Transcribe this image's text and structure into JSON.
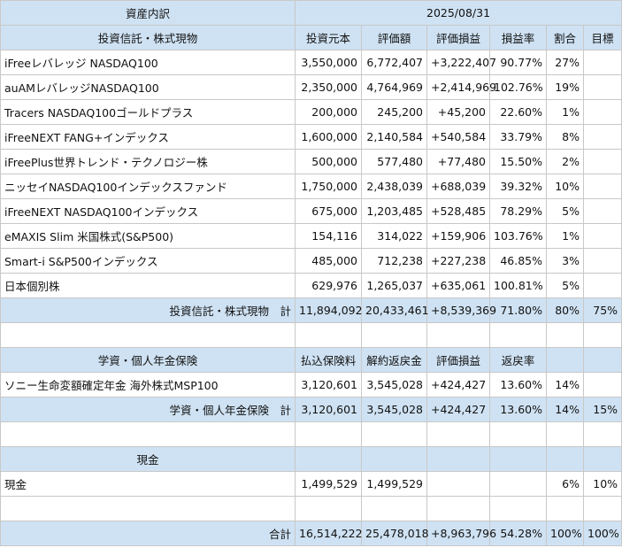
{
  "header": {
    "title": "資産内訳",
    "date": "2025/08/31"
  },
  "invest": {
    "section_label": "投資信託・株式現物",
    "columns": [
      "投資元本",
      "評価額",
      "評価損益",
      "損益率",
      "割合",
      "目標"
    ],
    "rows": [
      {
        "name": "iFreeレバレッジ NASDAQ100",
        "principal": "3,550,000",
        "value": "6,772,407",
        "gain": "+3,222,407",
        "rate": "90.77%",
        "share": "27%",
        "target": ""
      },
      {
        "name": "auAMレバレッジNASDAQ100",
        "principal": "2,350,000",
        "value": "4,764,969",
        "gain": "+2,414,969",
        "rate": "102.76%",
        "share": "19%",
        "target": ""
      },
      {
        "name": "Tracers NASDAQ100ゴールドプラス",
        "principal": "200,000",
        "value": "245,200",
        "gain": "+45,200",
        "rate": "22.60%",
        "share": "1%",
        "target": ""
      },
      {
        "name": "iFreeNEXT FANG+インデックス",
        "principal": "1,600,000",
        "value": "2,140,584",
        "gain": "+540,584",
        "rate": "33.79%",
        "share": "8%",
        "target": ""
      },
      {
        "name": "iFreePlus世界トレンド・テクノロジー株",
        "principal": "500,000",
        "value": "577,480",
        "gain": "+77,480",
        "rate": "15.50%",
        "share": "2%",
        "target": ""
      },
      {
        "name": "ニッセイNASDAQ100インデックスファンド",
        "principal": "1,750,000",
        "value": "2,438,039",
        "gain": "+688,039",
        "rate": "39.32%",
        "share": "10%",
        "target": ""
      },
      {
        "name": "iFreeNEXT NASDAQ100インデックス",
        "principal": "675,000",
        "value": "1,203,485",
        "gain": "+528,485",
        "rate": "78.29%",
        "share": "5%",
        "target": ""
      },
      {
        "name": "eMAXIS Slim 米国株式(S&P500)",
        "principal": "154,116",
        "value": "314,022",
        "gain": "+159,906",
        "rate": "103.76%",
        "share": "1%",
        "target": ""
      },
      {
        "name": "Smart-i S&P500インデックス",
        "principal": "485,000",
        "value": "712,238",
        "gain": "+227,238",
        "rate": "46.85%",
        "share": "3%",
        "target": ""
      },
      {
        "name": "日本個別株",
        "principal": "629,976",
        "value": "1,265,037",
        "gain": "+635,061",
        "rate": "100.81%",
        "share": "5%",
        "target": ""
      }
    ],
    "total": {
      "label": "投資信託・株式現物　計",
      "principal": "11,894,092",
      "value": "20,433,461",
      "gain": "+8,539,369",
      "rate": "71.80%",
      "share": "80%",
      "target": "75%"
    }
  },
  "insurance": {
    "section_label": "学資・個人年金保険",
    "columns": [
      "払込保険料",
      "解約返戻金",
      "評価損益",
      "返戻率",
      "",
      ""
    ],
    "rows": [
      {
        "name": "ソニー生命変額確定年金 海外株式MSP100",
        "principal": "3,120,601",
        "value": "3,545,028",
        "gain": "+424,427",
        "rate": "13.60%",
        "share": "14%",
        "target": ""
      }
    ],
    "total": {
      "label": "学資・個人年金保険　計",
      "principal": "3,120,601",
      "value": "3,545,028",
      "gain": "+424,427",
      "rate": "13.60%",
      "share": "14%",
      "target": "15%"
    }
  },
  "cash": {
    "section_label": "現金",
    "rows": [
      {
        "name": "現金",
        "principal": "1,499,529",
        "value": "1,499,529",
        "gain": "",
        "rate": "",
        "share": "6%",
        "target": "10%"
      }
    ]
  },
  "grand_total": {
    "label": "合計",
    "principal": "16,514,222",
    "value": "25,478,018",
    "gain": "+8,963,796",
    "rate": "54.28%",
    "share": "100%",
    "target": "100%"
  },
  "colors": {
    "header_bg": "#cfe2f3",
    "border": "#c8c8c8"
  }
}
